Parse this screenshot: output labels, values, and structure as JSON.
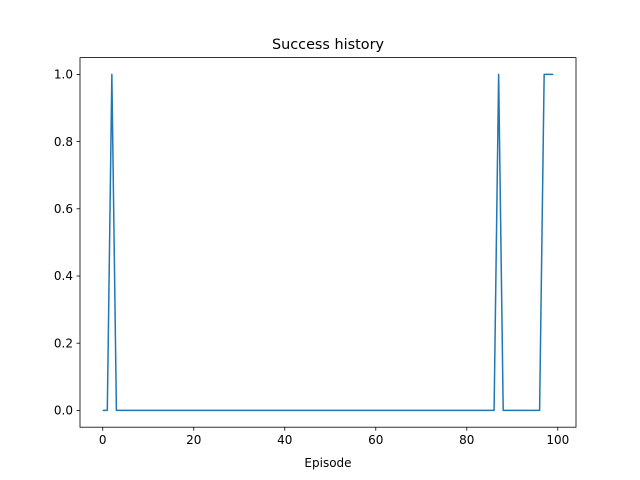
{
  "chart_data": {
    "type": "line",
    "title": "Success history",
    "xlabel": "Episode",
    "ylabel": "",
    "xlim": [
      -5,
      104
    ],
    "ylim": [
      -0.05,
      1.05
    ],
    "xticks": [
      0,
      20,
      40,
      60,
      80,
      100
    ],
    "yticks": [
      0.0,
      0.2,
      0.4,
      0.6,
      0.8,
      1.0
    ],
    "xtick_labels": [
      "0",
      "20",
      "40",
      "60",
      "80",
      "100"
    ],
    "ytick_labels": [
      "0.0",
      "0.2",
      "0.4",
      "0.6",
      "0.8",
      "1.0"
    ],
    "grid": false,
    "series": [
      {
        "color": "#1f77b4",
        "x": [
          0,
          1,
          2,
          3,
          86,
          87,
          88,
          96,
          97,
          98,
          99
        ],
        "y": [
          0,
          0,
          1,
          0,
          0,
          1,
          0,
          0,
          1,
          1,
          1
        ]
      }
    ]
  }
}
